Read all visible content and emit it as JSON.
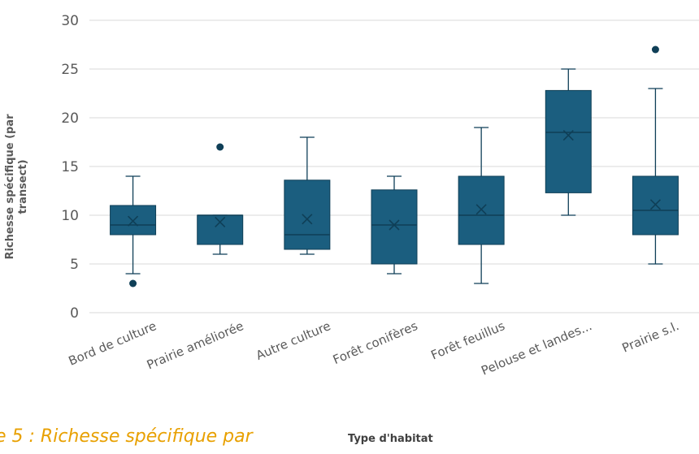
{
  "chart_data": {
    "type": "box",
    "categories": [
      "Bord de culture",
      "Prairie améliorée",
      "Autre culture",
      "Forêt conifères",
      "Forêt feuillus",
      "Pelouse et landes...",
      "Prairie s.l."
    ],
    "boxes": [
      {
        "min": 4,
        "q1": 8,
        "median": 9,
        "q3": 11,
        "max": 14,
        "mean": 9.4,
        "outliers": [
          3
        ]
      },
      {
        "min": 6,
        "q1": 7,
        "median": 10,
        "q3": 10,
        "max": 10,
        "mean": 9.3,
        "outliers": [
          17
        ]
      },
      {
        "min": 6,
        "q1": 6.5,
        "median": 8,
        "q3": 13.6,
        "max": 18,
        "mean": 9.6,
        "outliers": []
      },
      {
        "min": 4,
        "q1": 5,
        "median": 9,
        "q3": 12.6,
        "max": 14,
        "mean": 9.0,
        "outliers": []
      },
      {
        "min": 3,
        "q1": 7,
        "median": 10,
        "q3": 14,
        "max": 19,
        "mean": 10.6,
        "outliers": []
      },
      {
        "min": 10,
        "q1": 12.3,
        "median": 18.5,
        "q3": 22.8,
        "max": 25,
        "mean": 18.2,
        "outliers": []
      },
      {
        "min": 5,
        "q1": 8,
        "median": 10.5,
        "q3": 14,
        "max": 23,
        "mean": 11.1,
        "outliers": [
          27
        ]
      }
    ],
    "ylim": [
      0,
      30
    ],
    "yticks": [
      0,
      5,
      10,
      15,
      20,
      25,
      30
    ],
    "ylabel": "Richesse spécifique (par transect)",
    "xlabel": "Type d'habitat",
    "grid": true,
    "colors": {
      "box": "#1b5e7f",
      "line": "#0f3f57",
      "grid": "#d9d9d9",
      "text": "#595959"
    }
  },
  "caption": "e 5 : Richesse spécifique par"
}
